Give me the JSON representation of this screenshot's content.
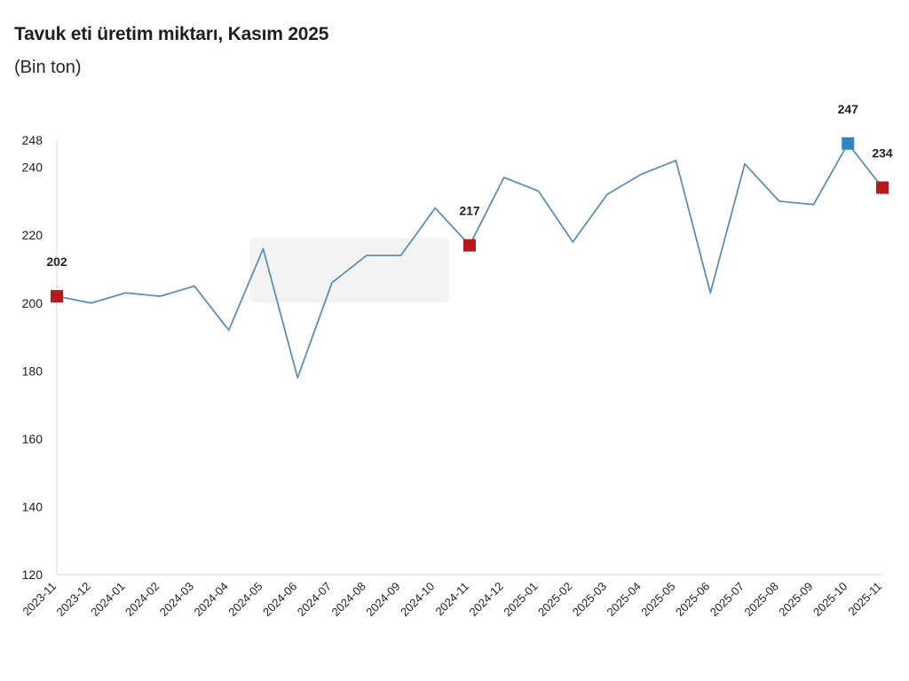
{
  "chart": {
    "title": "Tavuk eti üretim miktarı, Kasım 2025",
    "subtitle": "(Bin ton)"
  },
  "colors": {
    "line": "#5f8fb0",
    "highlight_red": "#b7191e",
    "highlight_blue": "#2f84c3",
    "axis": "#d7d7d7",
    "text": "#222222",
    "ghost_overlay": "#efefef"
  },
  "chart_data": {
    "type": "line",
    "title": "Tavuk eti üretim miktarı, Kasım 2025",
    "subtitle": "(Bin ton)",
    "xlabel": "",
    "ylabel": "",
    "x": [
      "2023-11",
      "2023-12",
      "2024-01",
      "2024-02",
      "2024-03",
      "2024-04",
      "2024-05",
      "2024-06",
      "2024-07",
      "2024-08",
      "2024-09",
      "2024-10",
      "2024-11",
      "2024-12",
      "2025-01",
      "2025-02",
      "2025-03",
      "2025-04",
      "2025-05",
      "2025-06",
      "2025-07",
      "2025-08",
      "2025-09",
      "2025-10",
      "2025-11"
    ],
    "values": [
      202,
      200,
      203,
      202,
      205,
      192,
      216,
      178,
      206,
      214,
      214,
      228,
      217,
      237,
      233,
      218,
      232,
      238,
      242,
      203,
      241,
      230,
      229,
      247,
      234
    ],
    "y_ticks": [
      120,
      140,
      160,
      180,
      200,
      220,
      240,
      248
    ],
    "ylim": [
      120,
      248
    ],
    "grid": false,
    "legend": "none",
    "highlights": [
      {
        "index": 0,
        "label": "202",
        "color": "red"
      },
      {
        "index": 12,
        "label": "217",
        "color": "red"
      },
      {
        "index": 23,
        "label": "247",
        "color": "blue"
      },
      {
        "index": 24,
        "label": "234",
        "color": "red"
      }
    ]
  }
}
